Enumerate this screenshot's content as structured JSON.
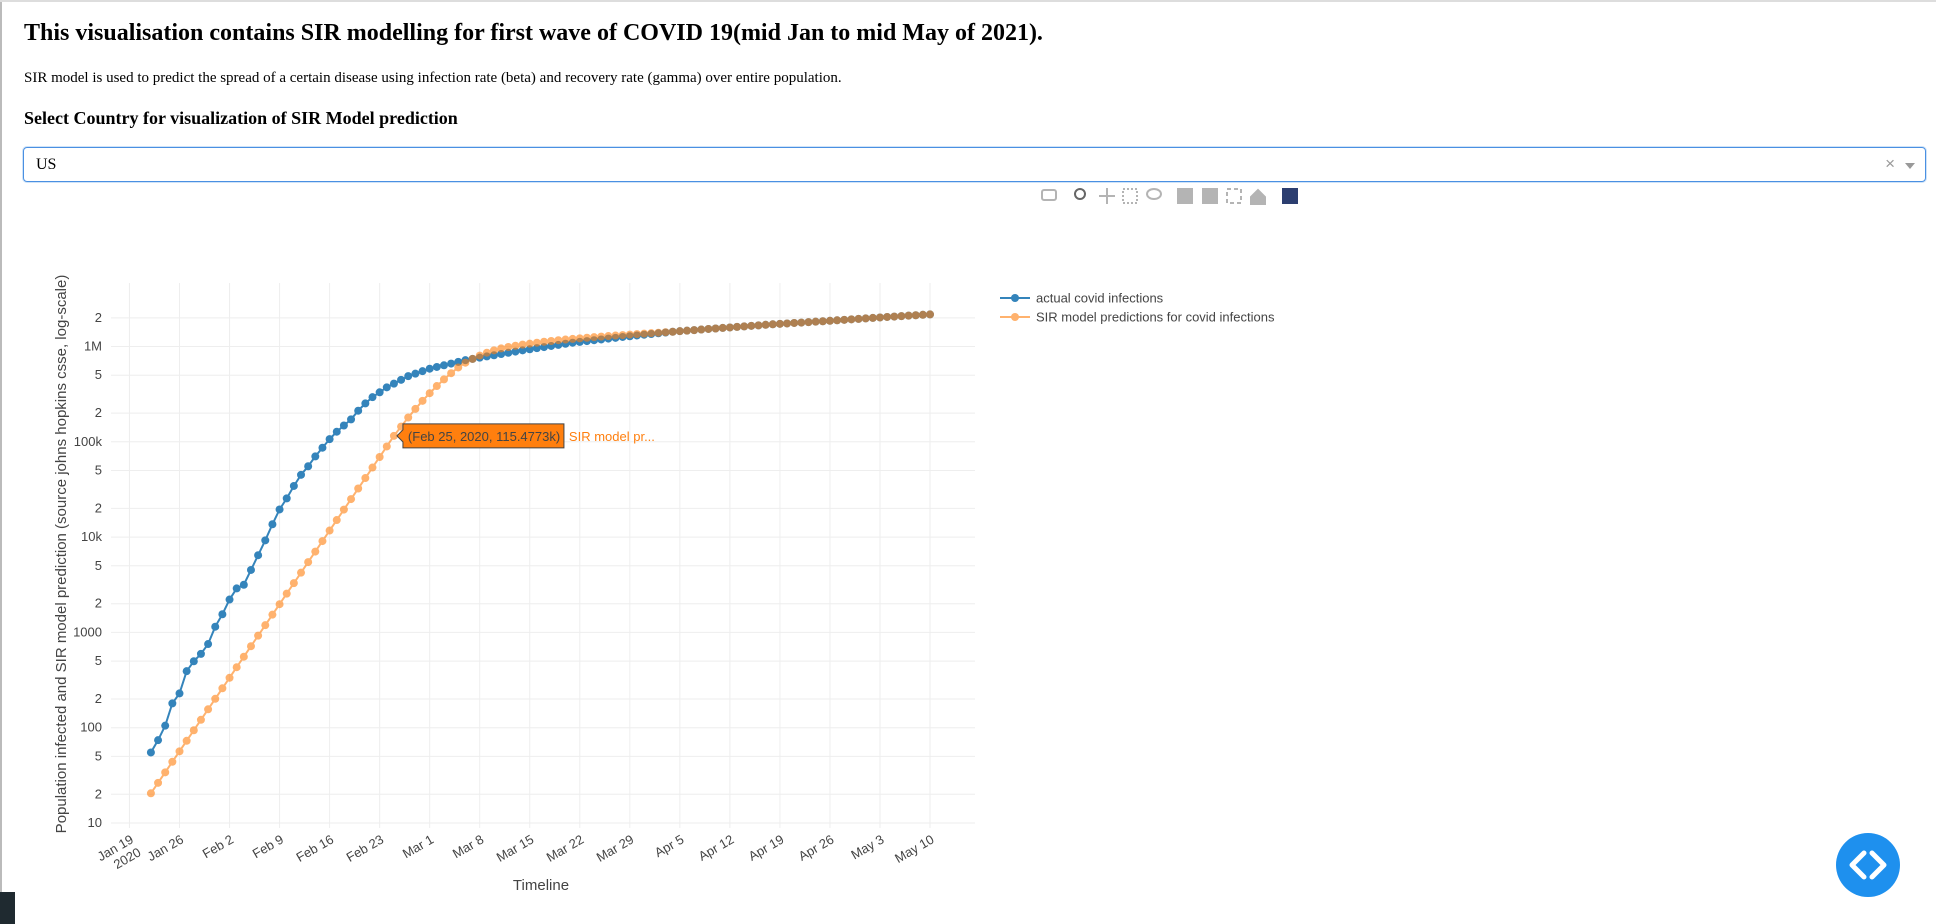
{
  "header": {
    "title": "This visualisation contains SIR modelling for first wave of COVID 19(mid Jan to mid May of 2021).",
    "description": "SIR model is used to predict the spread of a certain disease using infection rate (beta) and recovery rate (gamma) over entire population.",
    "select_label": "Select Country for visualization of SIR Model prediction"
  },
  "dropdown": {
    "selected": "US"
  },
  "chart_data": {
    "type": "line",
    "xlabel": "Timeline",
    "ylabel": "Population infected and SIR model prediction (source johns hopkins csse, log-scale)",
    "log_y": true,
    "grid": true,
    "legend": "right",
    "x": [
      "2020-01-22",
      "2020-01-23",
      "2020-01-24",
      "2020-01-25",
      "2020-01-26",
      "2020-01-27",
      "2020-01-28",
      "2020-01-29",
      "2020-01-30",
      "2020-01-31",
      "2020-02-01",
      "2020-02-02",
      "2020-02-03",
      "2020-02-04",
      "2020-02-05",
      "2020-02-06",
      "2020-02-07",
      "2020-02-08",
      "2020-02-09",
      "2020-02-10",
      "2020-02-11",
      "2020-02-12",
      "2020-02-13",
      "2020-02-14",
      "2020-02-15",
      "2020-02-16",
      "2020-02-17",
      "2020-02-18",
      "2020-02-19",
      "2020-02-20",
      "2020-02-21",
      "2020-02-22",
      "2020-02-23",
      "2020-02-24",
      "2020-02-25",
      "2020-02-26",
      "2020-02-27",
      "2020-02-28",
      "2020-02-29",
      "2020-03-01",
      "2020-03-02",
      "2020-03-03",
      "2020-03-04",
      "2020-03-05",
      "2020-03-06",
      "2020-03-07",
      "2020-03-08",
      "2020-03-09",
      "2020-03-10",
      "2020-03-11",
      "2020-03-12",
      "2020-03-13",
      "2020-03-14",
      "2020-03-15",
      "2020-03-16",
      "2020-03-17",
      "2020-03-18",
      "2020-03-19",
      "2020-03-20",
      "2020-03-21",
      "2020-03-22",
      "2020-03-23",
      "2020-03-24",
      "2020-03-25",
      "2020-03-26",
      "2020-03-27",
      "2020-03-28",
      "2020-03-29",
      "2020-03-30",
      "2020-03-31",
      "2020-04-01",
      "2020-04-02",
      "2020-04-03",
      "2020-04-04",
      "2020-04-05",
      "2020-04-06",
      "2020-04-07",
      "2020-04-08",
      "2020-04-09",
      "2020-04-10",
      "2020-04-11",
      "2020-04-12",
      "2020-04-13",
      "2020-04-14",
      "2020-04-15",
      "2020-04-16",
      "2020-04-17",
      "2020-04-18",
      "2020-04-19",
      "2020-04-20",
      "2020-04-21",
      "2020-04-22",
      "2020-04-23",
      "2020-04-24",
      "2020-04-25",
      "2020-04-26",
      "2020-04-27",
      "2020-04-28",
      "2020-04-29",
      "2020-04-30",
      "2020-05-01",
      "2020-05-02",
      "2020-05-03",
      "2020-05-04",
      "2020-05-05",
      "2020-05-06",
      "2020-05-07",
      "2020-05-08",
      "2020-05-09",
      "2020-05-10"
    ],
    "series": [
      {
        "name": "actual covid infections",
        "color": "#1f77b4",
        "opacity": 0.9,
        "values": [
          55,
          74,
          105,
          180,
          229,
          392,
          498,
          595,
          755,
          1148,
          1550,
          2213,
          2893,
          3163,
          4521,
          6460,
          9250,
          13640,
          19500,
          25500,
          34400,
          45000,
          55400,
          70300,
          86700,
          106700,
          127700,
          148300,
          172000,
          212000,
          253000,
          294000,
          331000,
          373000,
          408000,
          447000,
          489000,
          519000,
          551000,
          585000,
          610000,
          635000,
          662000,
          690000,
          719000,
          741000,
          764000,
          787000,
          809000,
          834000,
          859000,
          885000,
          912000,
          936000,
          962000,
          986000,
          1014000,
          1040000,
          1069000,
          1096000,
          1119000,
          1140000,
          1164000,
          1186000,
          1211000,
          1233000,
          1259000,
          1282000,
          1306000,
          1330000,
          1352000,
          1377000,
          1403000,
          1429000,
          1449000,
          1466000,
          1486000,
          1507000,
          1528000,
          1545000,
          1567000,
          1585000,
          1607000,
          1626000,
          1648000,
          1667000,
          1690000,
          1710000,
          1730000,
          1746000,
          1766000,
          1782000,
          1803000,
          1824000,
          1841000,
          1862000,
          1884000,
          1905000,
          1928000,
          1950000,
          1972000,
          1995000,
          2018000,
          2042000,
          2061000,
          2084000,
          2109000,
          2128000,
          2153000,
          2173000
        ]
      },
      {
        "name": "SIR model predictions for covid infections",
        "color": "#ff7f0e",
        "opacity": 0.6,
        "values": [
          20.5,
          26.4,
          34,
          43.9,
          56.5,
          72.9,
          94,
          121,
          156,
          201,
          259,
          334,
          431,
          556,
          716,
          925,
          1191,
          1535,
          1977,
          2553,
          3289,
          4236,
          5470,
          7047,
          9078,
          11720,
          15100,
          19450,
          25060,
          32360,
          41690,
          53700,
          69340,
          89330,
          115477.3,
          144500,
          179900,
          221300,
          269200,
          323600,
          384600,
          451900,
          524800,
          602600,
          676100,
          741300,
          803500,
          861000,
          912000,
          955000,
          988600,
          1018600,
          1047100,
          1071500,
          1096500,
          1122000,
          1142900,
          1164100,
          1183100,
          1202300,
          1219000,
          1236000,
          1253100,
          1270600,
          1288200,
          1303200,
          1318300,
          1333500,
          1349000,
          1364600,
          1380400,
          1396400,
          1412500,
          1428900,
          1449000,
          1466000,
          1486000,
          1507000,
          1528000,
          1545000,
          1567000,
          1585000,
          1607000,
          1626000,
          1648000,
          1667000,
          1690000,
          1710000,
          1730000,
          1746000,
          1766000,
          1782000,
          1803000,
          1824000,
          1841000,
          1862000,
          1884000,
          1905000,
          1928000,
          1950000,
          1972000,
          1995000,
          2018000,
          2042000,
          2061000,
          2084000,
          2109000,
          2128000,
          2153000,
          2173000
        ]
      }
    ],
    "xlim": [
      "2020-01-16T10:00:00",
      "2020-05-16T07:00:00"
    ],
    "ylim": [
      8.86,
      4640000
    ],
    "xticks": [
      {
        "value": "2020-01-19",
        "label": "Jan 19\n2020"
      },
      {
        "value": "2020-01-26",
        "label": "Jan 26"
      },
      {
        "value": "2020-02-02",
        "label": "Feb 2"
      },
      {
        "value": "2020-02-09",
        "label": "Feb 9"
      },
      {
        "value": "2020-02-16",
        "label": "Feb 16"
      },
      {
        "value": "2020-02-23",
        "label": "Feb 23"
      },
      {
        "value": "2020-03-01",
        "label": "Mar 1"
      },
      {
        "value": "2020-03-08",
        "label": "Mar 8"
      },
      {
        "value": "2020-03-15",
        "label": "Mar 15"
      },
      {
        "value": "2020-03-22",
        "label": "Mar 22"
      },
      {
        "value": "2020-03-29",
        "label": "Mar 29"
      },
      {
        "value": "2020-04-05",
        "label": "Apr 5"
      },
      {
        "value": "2020-04-12",
        "label": "Apr 12"
      },
      {
        "value": "2020-04-19",
        "label": "Apr 19"
      },
      {
        "value": "2020-04-26",
        "label": "Apr 26"
      },
      {
        "value": "2020-05-03",
        "label": "May 3"
      },
      {
        "value": "2020-05-10",
        "label": "May 10"
      }
    ],
    "yticks": [
      10,
      {
        "value": 20,
        "label": "2"
      },
      {
        "value": 50,
        "label": "5"
      },
      100,
      {
        "value": 200,
        "label": "2"
      },
      {
        "value": 500,
        "label": "5"
      },
      1000,
      {
        "value": 2000,
        "label": "2"
      },
      {
        "value": 5000,
        "label": "5"
      },
      {
        "value": 10000,
        "label": "10k"
      },
      {
        "value": 20000,
        "label": "2"
      },
      {
        "value": 50000,
        "label": "5"
      },
      {
        "value": 100000,
        "label": "100k"
      },
      {
        "value": 200000,
        "label": "2"
      },
      {
        "value": 500000,
        "label": "5"
      },
      {
        "value": 1000000,
        "label": "1M"
      },
      {
        "value": 2000000,
        "label": "2"
      }
    ],
    "hover_label": {
      "text": "(Feb 25, 2020, 115.4773k)",
      "name": "SIR model pr..."
    }
  }
}
